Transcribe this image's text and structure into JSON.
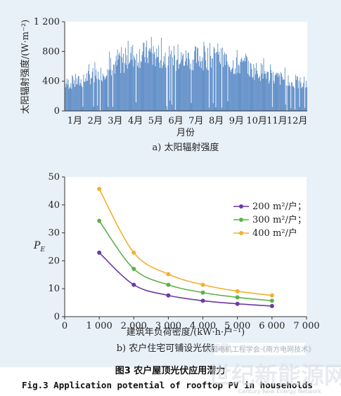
{
  "chart_data": [
    {
      "type": "bar",
      "caption": "a) 太阳辐射强度",
      "ylabel": "太阳辐射强度/(W·m⁻²)",
      "xlabel": "月份",
      "ylim": [
        0,
        1200
      ],
      "yticks": [
        0,
        400,
        800,
        1200
      ],
      "ytick_labels": [
        "0",
        "400",
        "800",
        "1 200"
      ],
      "categories": [
        "1月",
        "2月",
        "3月",
        "4月",
        "5月",
        "6月",
        "7月",
        "8月",
        "9月",
        "10月",
        "11月",
        "12月"
      ],
      "monthly_peak": [
        500,
        620,
        800,
        1020,
        1070,
        930,
        980,
        1000,
        880,
        780,
        640,
        520
      ],
      "bar_color": "#4a7fc0"
    },
    {
      "type": "line",
      "caption": "b) 农户住宅可铺设光伏容量",
      "ylabel": "P",
      "ylabel_sub": "E",
      "xlabel": "建筑年负荷密度/(kW·h·户⁻¹)",
      "xlim": [
        0,
        7000
      ],
      "ylim": [
        0,
        50
      ],
      "xticks": [
        0,
        1000,
        2000,
        3000,
        4000,
        5000,
        6000,
        7000
      ],
      "xtick_labels": [
        "0",
        "1 000",
        "2 000",
        "3 000",
        "4 000",
        "5 000",
        "6 000",
        "7 000"
      ],
      "yticks": [
        0,
        10,
        20,
        30,
        40,
        50
      ],
      "x": [
        1000,
        2000,
        3000,
        4000,
        5000,
        6000
      ],
      "series": [
        {
          "name": "200 m²/户；",
          "color": "#6a3aa0",
          "values": [
            22.9,
            11.4,
            7.6,
            5.7,
            4.6,
            3.8
          ]
        },
        {
          "name": "300 m²/户；",
          "color": "#5fb04a",
          "values": [
            34.3,
            17.1,
            11.4,
            8.6,
            6.9,
            5.7
          ]
        },
        {
          "name": "400 m²/户",
          "color": "#f2b02e",
          "values": [
            45.7,
            22.9,
            15.2,
            11.4,
            9.1,
            7.6
          ]
        }
      ]
    }
  ],
  "figure": {
    "title_cn": "图3  农户屋顶光伏应用潜力",
    "title_en": "Fig.3  Application potential of rooftop PV in households"
  },
  "watermark": {
    "line1": "世纪新能源网",
    "line2": "Century New Energy Network",
    "overlay": "中国电机工程学会·《南方电网技术》"
  }
}
